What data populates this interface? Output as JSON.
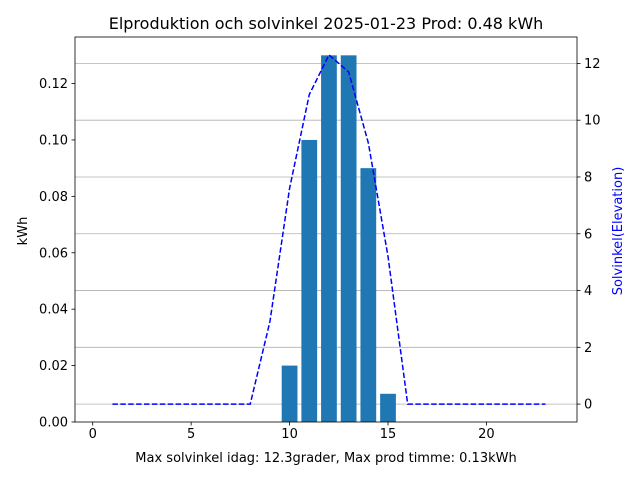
{
  "chart_data": {
    "type": "bar",
    "title": "Elproduktion och solvinkel 2025-01-23 Prod: 0.48 kWh",
    "xlabel": "Max solvinkel idag: 12.3grader, Max prod timme: 0.13kWh",
    "ylabel": "kWh",
    "ylabel_right": "Solvinkel(Elevation)",
    "xlim": [
      -0.9,
      24.6
    ],
    "ylim": [
      0,
      0.1365
    ],
    "ylim_right": [
      -0.63,
      12.93
    ],
    "xticks": [
      0,
      5,
      10,
      15,
      20
    ],
    "xtick_labels": [
      "0",
      "5",
      "10",
      "15",
      "20"
    ],
    "yticks": [
      0.0,
      0.02,
      0.04,
      0.06,
      0.08,
      0.1,
      0.12
    ],
    "ytick_labels": [
      "0.00",
      "0.02",
      "0.04",
      "0.06",
      "0.08",
      "0.10",
      "0.12"
    ],
    "yticks_right": [
      0,
      2,
      4,
      6,
      8,
      10,
      12
    ],
    "ytick_labels_right": [
      "0",
      "2",
      "4",
      "6",
      "8",
      "10",
      "12"
    ],
    "grid": "horizontal, right axis",
    "series": [
      {
        "kind": "bar",
        "axis": "left",
        "color": "#1f77b4",
        "x": [
          10,
          11,
          12,
          13,
          14,
          15
        ],
        "values": [
          0.02,
          0.1,
          0.13,
          0.13,
          0.09,
          0.01
        ]
      },
      {
        "kind": "line",
        "style": "dashed",
        "axis": "right",
        "color": "#0000ff",
        "x": [
          1,
          2,
          3,
          4,
          5,
          6,
          7,
          8,
          9,
          10,
          11,
          12,
          13,
          14,
          15,
          16,
          17,
          18,
          19,
          20,
          21,
          22,
          23
        ],
        "values": [
          0,
          0,
          0,
          0,
          0,
          0,
          0,
          0,
          2.9,
          7.6,
          10.9,
          12.3,
          11.7,
          9.2,
          5.2,
          0,
          0,
          0,
          0,
          0,
          0,
          0,
          0
        ]
      }
    ]
  }
}
